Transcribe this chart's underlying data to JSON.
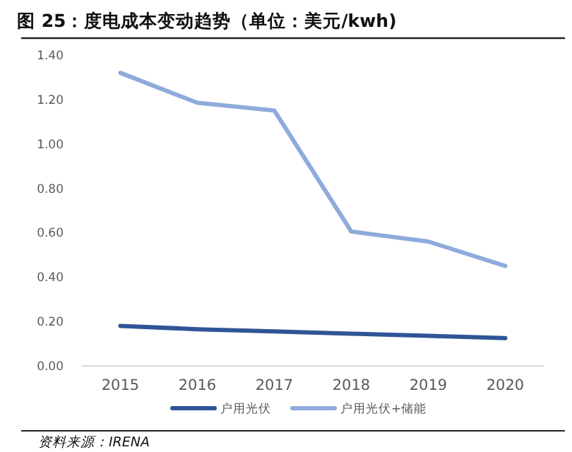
{
  "chart_data": {
    "type": "line",
    "title": "图 25：度电成本变动趋势（单位：美元/kwh)",
    "categories": [
      "2015",
      "2016",
      "2017",
      "2018",
      "2019",
      "2020"
    ],
    "series": [
      {
        "name": "户用光伏",
        "color": "#2f5597",
        "values": [
          0.18,
          0.165,
          0.155,
          0.145,
          0.135,
          0.125
        ]
      },
      {
        "name": "户用光伏+储能",
        "color": "#8faadc",
        "values": [
          1.32,
          1.185,
          1.15,
          0.605,
          0.56,
          0.45
        ]
      }
    ],
    "ylim": [
      0,
      1.4
    ],
    "yticks": [
      {
        "value": 0,
        "label": "0.00"
      },
      {
        "value": 0.2,
        "label": "0.20"
      },
      {
        "value": 0.4,
        "label": "0.40"
      },
      {
        "value": 0.6,
        "label": "0.60"
      },
      {
        "value": 0.8,
        "label": "0.80"
      },
      {
        "value": 1.0,
        "label": "1.00"
      },
      {
        "value": 1.2,
        "label": "1.20"
      },
      {
        "value": 1.4,
        "label": "1.40"
      }
    ],
    "grid": false,
    "legend": "bottom",
    "marker": "none",
    "line_style": "solid",
    "annotations": [
      "资料来源：IRENA"
    ]
  }
}
